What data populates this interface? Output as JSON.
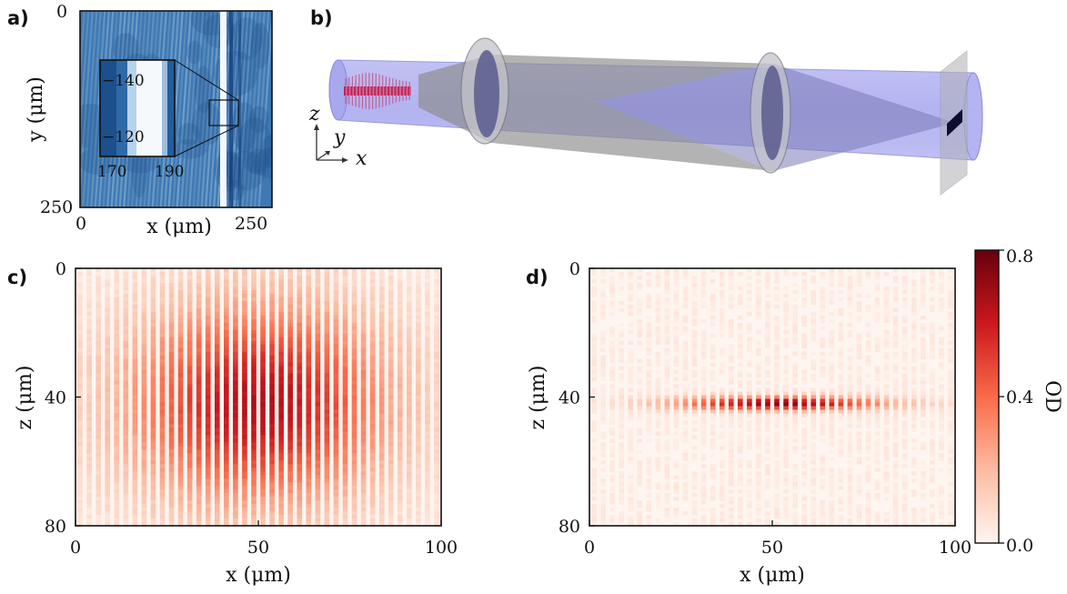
{
  "figure": {
    "panel_labels": [
      "a)",
      "b)",
      "c)",
      "d)"
    ]
  },
  "chart_data": [
    {
      "panel": "a)",
      "type": "heatmap",
      "xlabel": "x (μm)",
      "ylabel": "y (μm)",
      "xlim": [
        0,
        250
      ],
      "ylim": [
        0,
        250
      ],
      "x_ticks": [
        "0",
        "250"
      ],
      "y_ticks": [
        "0",
        "250"
      ],
      "colormap": "blues",
      "inset": {
        "x_ticks": [
          "170",
          "190"
        ],
        "y_ticks": [
          "−140",
          "−120"
        ],
        "xlim": [
          162,
          202
        ],
        "ylim": [
          -148,
          -112
        ]
      }
    },
    {
      "panel": "b)",
      "type": "diagram",
      "axis_labels": {
        "z": "z",
        "y": "y",
        "x": "x"
      },
      "colors": {
        "beam": "#aaaaf0",
        "lens": "#9a9aa8",
        "fringes": "#c02050",
        "camera": "#0d0d30"
      }
    },
    {
      "panel": "c)",
      "type": "heatmap",
      "xlabel": "x (μm)",
      "ylabel": "z (μm)",
      "xlim": [
        0,
        100
      ],
      "ylim": [
        0,
        80
      ],
      "x_ticks": [
        "0",
        "50",
        "100"
      ],
      "y_ticks": [
        "0",
        "40",
        "80"
      ],
      "colormap": "reds",
      "fringe_period_um": 2.5,
      "envelope": {
        "center_x": 50,
        "center_z": 42,
        "sigma_x": 25,
        "sigma_z": 22,
        "peak_od": 0.62
      }
    },
    {
      "panel": "d)",
      "type": "heatmap",
      "xlabel": "x (μm)",
      "ylabel": "z (μm)",
      "xlim": [
        0,
        100
      ],
      "ylim": [
        0,
        80
      ],
      "x_ticks": [
        "0",
        "50",
        "100"
      ],
      "y_ticks": [
        "0",
        "40",
        "80"
      ],
      "colormap": "reds",
      "fringe_period_um": 2.5,
      "envelope": {
        "center_x": 52,
        "center_z": 42,
        "sigma_x": 20,
        "sigma_z": 1.5,
        "peak_od": 0.7
      }
    }
  ],
  "colorbar": {
    "label": "OD",
    "range": [
      0.0,
      0.8
    ],
    "ticks": [
      "0.0",
      "0.4",
      "0.8"
    ],
    "colors": {
      "low": "#fff5f0",
      "mid": "#f4563f",
      "high": "#67000d"
    }
  }
}
